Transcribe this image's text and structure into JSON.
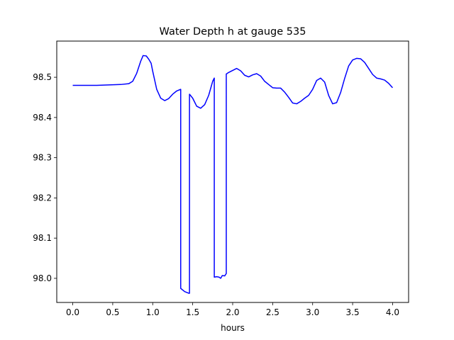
{
  "chart_data": {
    "type": "line",
    "title": "Water Depth h at gauge 535",
    "xlabel": "hours",
    "ylabel": "",
    "xlim": [
      -0.2,
      4.2
    ],
    "ylim": [
      97.94,
      98.59
    ],
    "x_ticks": [
      0.0,
      0.5,
      1.0,
      1.5,
      2.0,
      2.5,
      3.0,
      3.5,
      4.0
    ],
    "x_tick_labels": [
      "0.0",
      "0.5",
      "1.0",
      "1.5",
      "2.0",
      "2.5",
      "3.0",
      "3.5",
      "4.0"
    ],
    "y_ticks": [
      98.0,
      98.1,
      98.2,
      98.3,
      98.4,
      98.5
    ],
    "y_tick_labels": [
      "98.0",
      "98.1",
      "98.2",
      "98.3",
      "98.4",
      "98.5"
    ],
    "grid": false,
    "legend": "none",
    "series": [
      {
        "color": "#0000ff",
        "x": [
          0.0,
          0.3,
          0.6,
          0.7,
          0.75,
          0.8,
          0.85,
          0.88,
          0.92,
          0.95,
          0.98,
          1.0,
          1.05,
          1.1,
          1.15,
          1.2,
          1.25,
          1.3,
          1.35,
          1.35,
          1.4,
          1.45,
          1.46,
          1.46,
          1.5,
          1.55,
          1.6,
          1.65,
          1.7,
          1.75,
          1.77,
          1.77,
          1.8,
          1.83,
          1.85,
          1.87,
          1.9,
          1.92,
          1.92,
          1.95,
          2.0,
          2.05,
          2.1,
          2.15,
          2.2,
          2.25,
          2.3,
          2.35,
          2.4,
          2.45,
          2.5,
          2.55,
          2.6,
          2.65,
          2.7,
          2.75,
          2.8,
          2.85,
          2.9,
          2.95,
          3.0,
          3.05,
          3.1,
          3.15,
          3.2,
          3.25,
          3.3,
          3.35,
          3.4,
          3.45,
          3.5,
          3.55,
          3.6,
          3.65,
          3.7,
          3.75,
          3.8,
          3.85,
          3.9,
          3.95,
          4.0
        ],
        "y": [
          98.48,
          98.48,
          98.482,
          98.484,
          98.49,
          98.51,
          98.54,
          98.554,
          98.553,
          98.545,
          98.535,
          98.515,
          98.47,
          98.448,
          98.442,
          98.447,
          98.458,
          98.466,
          98.47,
          97.975,
          97.967,
          97.963,
          97.963,
          98.458,
          98.448,
          98.428,
          98.423,
          98.432,
          98.455,
          98.49,
          98.498,
          98.003,
          98.004,
          98.003,
          98.0,
          98.007,
          98.006,
          98.012,
          98.508,
          98.512,
          98.517,
          98.522,
          98.516,
          98.505,
          98.501,
          98.506,
          98.509,
          98.503,
          98.49,
          98.482,
          98.474,
          98.473,
          98.473,
          98.463,
          98.45,
          98.436,
          98.434,
          98.44,
          98.448,
          98.455,
          98.47,
          98.492,
          98.498,
          98.488,
          98.455,
          98.434,
          98.437,
          98.462,
          98.497,
          98.528,
          98.543,
          98.547,
          98.546,
          98.537,
          98.522,
          98.507,
          98.498,
          98.496,
          98.493,
          98.485,
          98.474
        ]
      }
    ]
  }
}
